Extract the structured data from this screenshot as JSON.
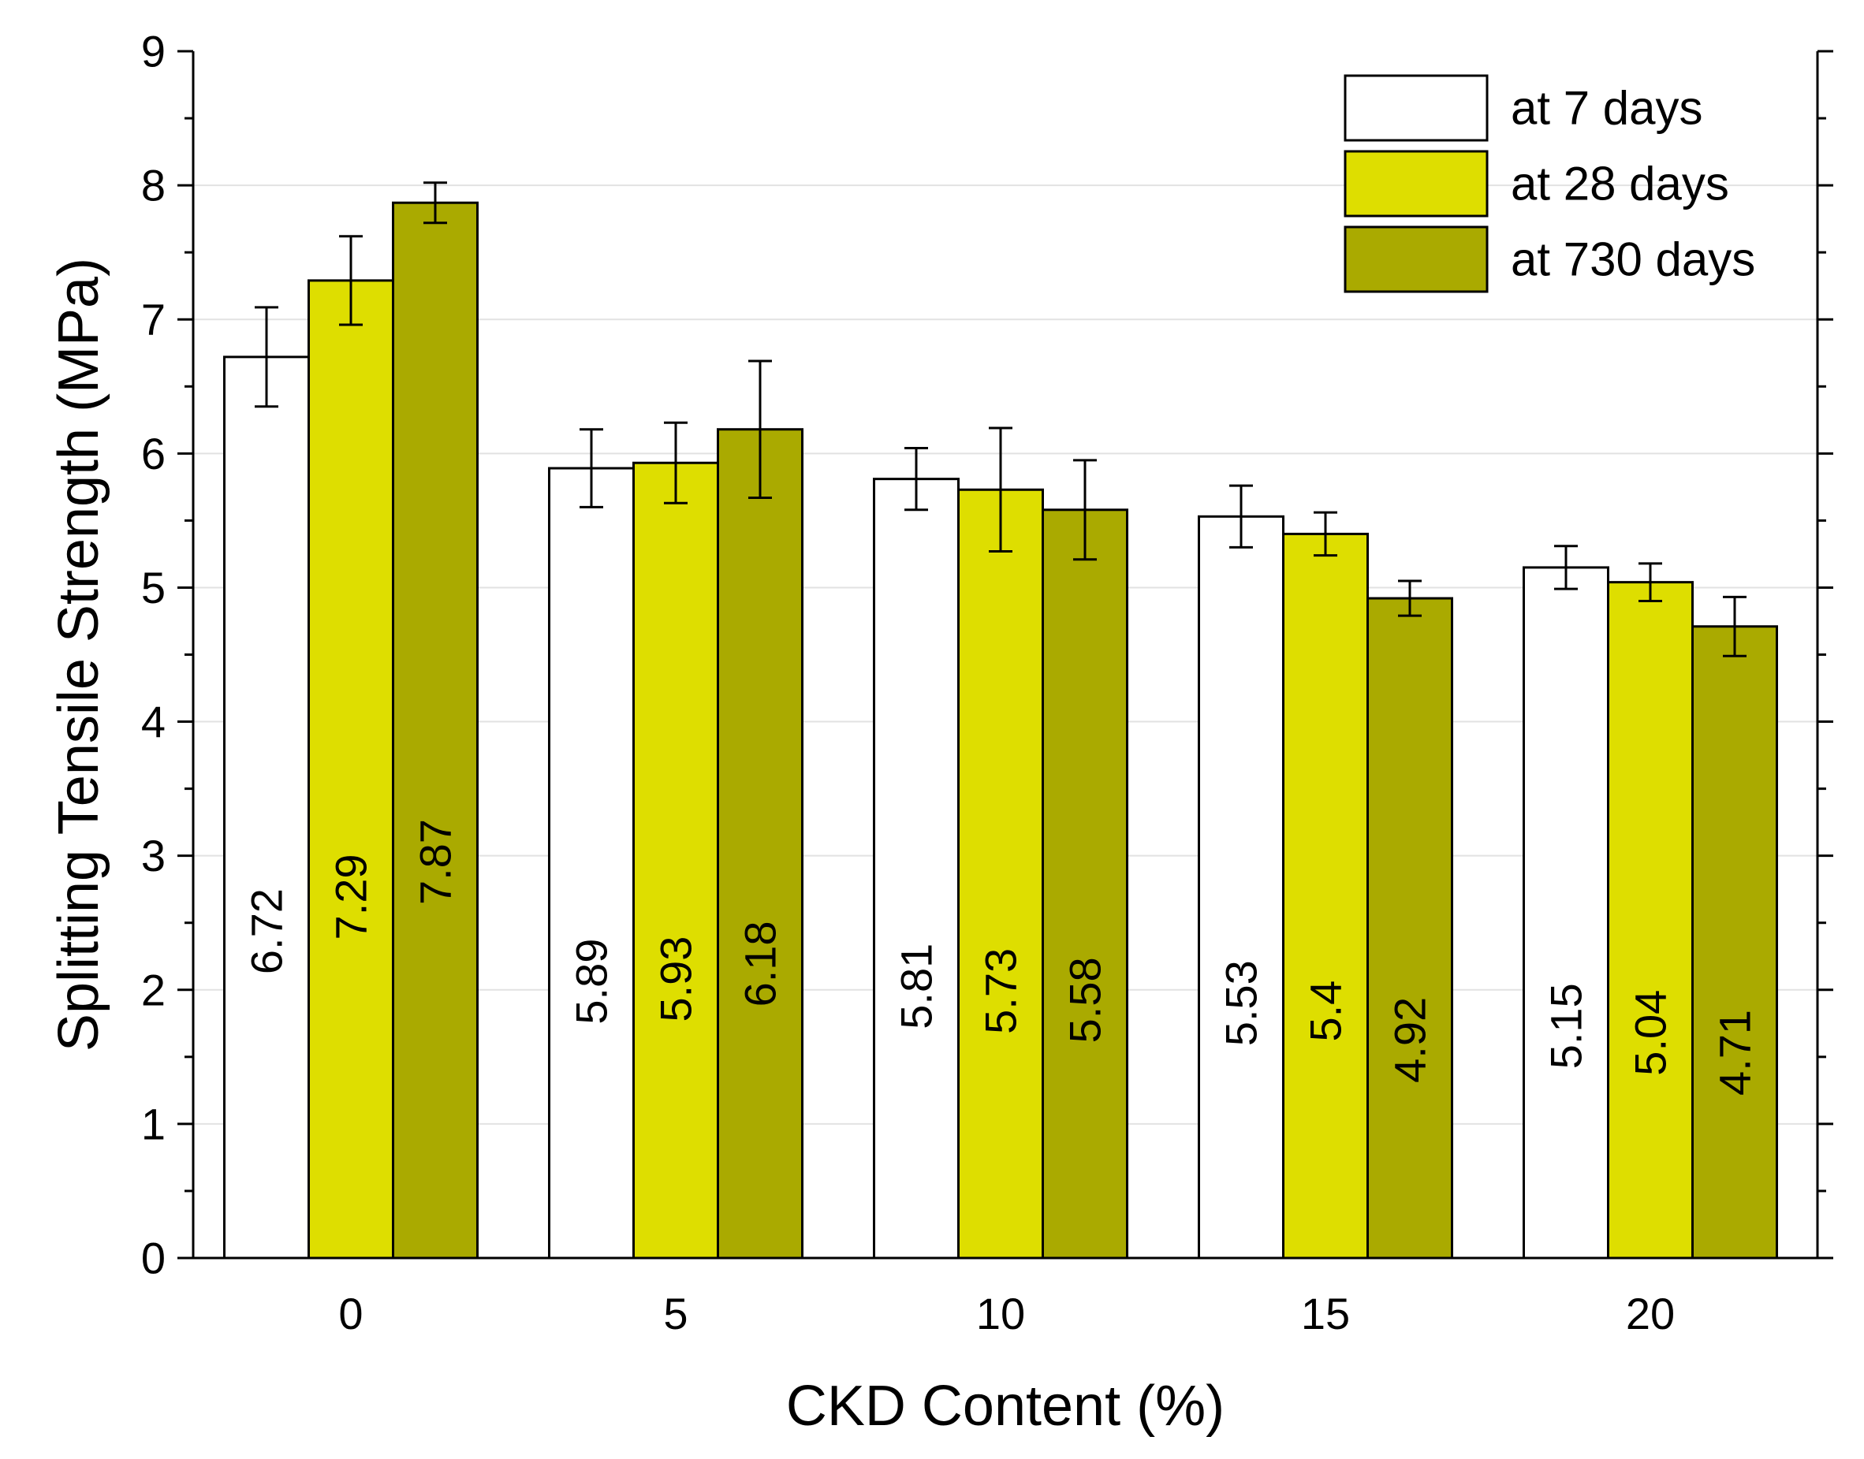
{
  "chart_data": {
    "type": "bar",
    "title": "",
    "xlabel": "CKD Content (%)",
    "ylabel": "Splitting Tensile Strength (MPa)",
    "ylim": [
      0,
      9
    ],
    "yticks": [
      "0",
      "1",
      "2",
      "3",
      "4",
      "5",
      "6",
      "7",
      "8",
      "9"
    ],
    "categories": [
      "0",
      "5",
      "10",
      "15",
      "20"
    ],
    "grid": "horizontal",
    "legend_position": "top-right",
    "series": [
      {
        "name": "at 7 days",
        "color": "#ffffff",
        "values": [
          6.72,
          5.89,
          5.81,
          5.53,
          5.15
        ],
        "labels": [
          "6.72",
          "5.89",
          "5.81",
          "5.53",
          "5.15"
        ],
        "errors": [
          0.37,
          0.29,
          0.23,
          0.23,
          0.16
        ]
      },
      {
        "name": "at 28 days",
        "color": "#dede00",
        "values": [
          7.29,
          5.93,
          5.73,
          5.4,
          5.04
        ],
        "labels": [
          "7.29",
          "5.93",
          "5.73",
          "5.4",
          "5.04"
        ],
        "errors": [
          0.33,
          0.3,
          0.46,
          0.16,
          0.14
        ]
      },
      {
        "name": "at 730 days",
        "color": "#aaaa00",
        "values": [
          7.87,
          6.18,
          5.58,
          4.92,
          4.71
        ],
        "labels": [
          "7.87",
          "6.18",
          "5.58",
          "4.92",
          "4.71"
        ],
        "errors": [
          0.15,
          0.51,
          0.37,
          0.13,
          0.22
        ]
      }
    ]
  }
}
